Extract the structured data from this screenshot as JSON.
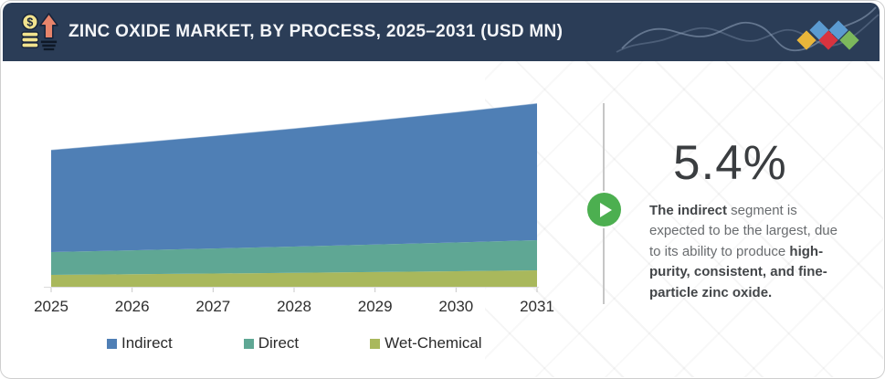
{
  "header": {
    "title": "ZINC OXIDE MARKET, BY PROCESS, 2025–2031 (USD MN)",
    "bg_color": "#2b3d57",
    "icon": "money-growth-icon",
    "decoration_diamond_colors": [
      "#e9b63a",
      "#5b9bd1",
      "#d8333f",
      "#5b9bd1",
      "#7cb85c"
    ]
  },
  "chart_data": {
    "type": "area",
    "stacked": true,
    "x": [
      2025,
      2026,
      2027,
      2028,
      2029,
      2030,
      2031
    ],
    "series": [
      {
        "name": "Wet-Chemical",
        "color": "#a9b85c",
        "values": [
          13.0,
          13.7,
          14.5,
          15.3,
          16.1,
          17.0,
          18.0
        ]
      },
      {
        "name": "Direct",
        "color": "#5fa794",
        "values": [
          25.0,
          26.2,
          27.4,
          28.7,
          30.1,
          31.5,
          33.0
        ]
      },
      {
        "name": "Indirect",
        "color": "#4f7fb5",
        "values": [
          112.0,
          117.6,
          123.4,
          129.5,
          136.0,
          142.8,
          150.0
        ]
      }
    ],
    "title": "ZINC OXIDE MARKET, BY PROCESS, 2025–2031 (USD MN)",
    "xlabel": "",
    "ylabel": "",
    "units": "USD MN (y-axis unlabeled; values are relative estimates read from pixel heights)",
    "legend_order": [
      "Indirect",
      "Direct",
      "Wet-Chemical"
    ],
    "legend_position": "bottom",
    "grid": false,
    "axis_line_color": "#dcdcdc"
  },
  "callout": {
    "stat": "5.4%",
    "bold_lead": "The indirect",
    "normal_text": " segment is expected to be the largest, due to its ability to produce ",
    "bold_tail": "high-purity, consistent, and fine-particle zinc oxide.",
    "play_icon_color": "#4caf50"
  }
}
